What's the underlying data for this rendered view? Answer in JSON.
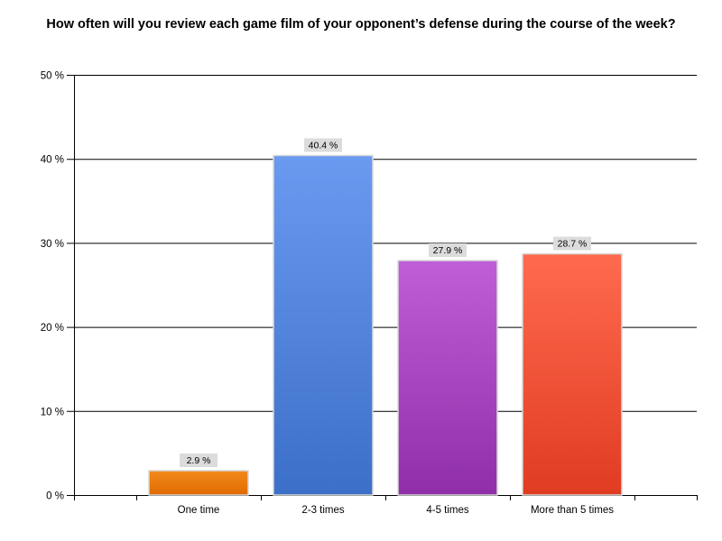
{
  "chart_data": {
    "type": "bar",
    "title": "How often will you review each game film of your opponent’s defense during the course of the week?",
    "xlabel": "",
    "ylabel": "",
    "categories": [
      "One time",
      "2-3 times",
      "4-5 times",
      "More than 5 times"
    ],
    "values": [
      2.9,
      40.4,
      27.9,
      28.7
    ],
    "data_labels": [
      "2.9 %",
      "40.4 %",
      "27.9 %",
      "28.7 %"
    ],
    "ylim": [
      0,
      50
    ],
    "yticks": [
      0,
      10,
      20,
      30,
      40,
      50
    ],
    "ytick_labels": [
      "0 %",
      "10 %",
      "20 %",
      "30 %",
      "40 %",
      "50 %"
    ],
    "grid": true,
    "legend": "none",
    "colors": [
      {
        "top": "#f28a1c",
        "bottom": "#e06a00"
      },
      {
        "top": "#6a9af0",
        "bottom": "#3c6fc8"
      },
      {
        "top": "#c05ed8",
        "bottom": "#8f2ea8"
      },
      {
        "top": "#ff6a4e",
        "bottom": "#e03c22"
      }
    ]
  }
}
